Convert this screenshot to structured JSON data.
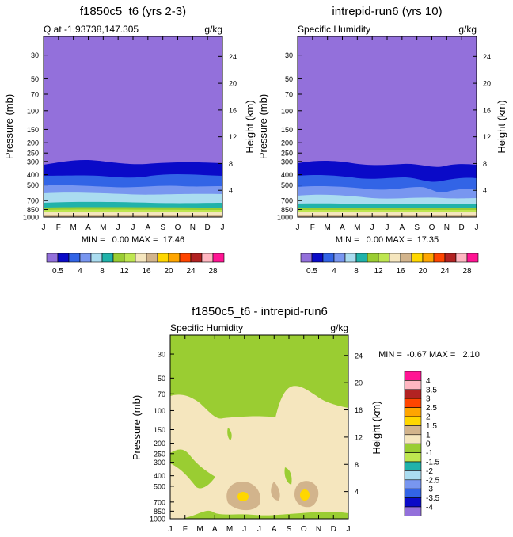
{
  "chart_data": [
    {
      "type": "heatmap",
      "title": "f1850c5_t6 (yrs 2-3)",
      "subtitle_left": "Q at -1.93738,147.305",
      "units": "g/kg",
      "ylabel": "Pressure (mb)",
      "y2label": "Height (km)",
      "x_ticks": [
        "J",
        "F",
        "M",
        "A",
        "M",
        "J",
        "J",
        "A",
        "S",
        "O",
        "N",
        "D",
        "J"
      ],
      "y_ticks": [
        "30",
        "50",
        "70",
        "100",
        "150",
        "200",
        "250",
        "300",
        "400",
        "500",
        "700",
        "850",
        "1000"
      ],
      "y2_ticks": [
        "24",
        "20",
        "16",
        "12",
        "8",
        "4"
      ],
      "stats": "MIN =   0.00 MAX =  17.46",
      "colorbar_labels": [
        "0.5",
        "4",
        "8",
        "12",
        "16",
        "20",
        "24",
        "28"
      ]
    },
    {
      "type": "heatmap",
      "title": "intrepid-run6 (yrs 10)",
      "subtitle_left": "Specific Humidity",
      "units": "g/kg",
      "ylabel": "Pressure (mb)",
      "y2label": "Height (km)",
      "x_ticks": [
        "J",
        "F",
        "M",
        "A",
        "M",
        "J",
        "J",
        "A",
        "S",
        "O",
        "N",
        "D",
        "J"
      ],
      "y_ticks": [
        "30",
        "50",
        "70",
        "100",
        "150",
        "200",
        "250",
        "300",
        "400",
        "500",
        "700",
        "850",
        "1000"
      ],
      "y2_ticks": [
        "24",
        "20",
        "16",
        "12",
        "8",
        "4"
      ],
      "stats": "MIN =   0.00 MAX =  17.35",
      "colorbar_labels": [
        "0.5",
        "4",
        "8",
        "12",
        "16",
        "20",
        "24",
        "28"
      ]
    },
    {
      "type": "heatmap",
      "title": "f1850c5_t6 - intrepid-run6",
      "subtitle_left": "Specific Humidity",
      "units": "g/kg",
      "ylabel": "Pressure (mb)",
      "y2label": "Height (km)",
      "x_ticks": [
        "J",
        "F",
        "M",
        "A",
        "M",
        "J",
        "J",
        "A",
        "S",
        "O",
        "N",
        "D",
        "J"
      ],
      "y_ticks": [
        "30",
        "50",
        "70",
        "100",
        "150",
        "200",
        "250",
        "300",
        "400",
        "500",
        "700",
        "850",
        "1000"
      ],
      "y2_ticks": [
        "24",
        "20",
        "16",
        "12",
        "8",
        "4"
      ],
      "stats": "MIN =  -0.67 MAX =   2.10",
      "legend_levels": [
        "4",
        "3.5",
        "3",
        "2.5",
        "2",
        "1.5",
        "1",
        "0",
        "-1",
        "-1.5",
        "-2",
        "-2.5",
        "-3",
        "-3.5",
        "-4"
      ]
    }
  ],
  "palettes": {
    "abs": [
      "#9370db",
      "#0a0ac8",
      "#3264e6",
      "#7896f0",
      "#aadcf0",
      "#20b2aa",
      "#9acd32",
      "#bee650",
      "#f5e6be",
      "#d2b48c",
      "#ffd700",
      "#ffa500",
      "#ff4500",
      "#b22222",
      "#ffb6c1",
      "#ff1493"
    ],
    "diff": [
      "#ff1493",
      "#ffb6c1",
      "#b22222",
      "#ff4500",
      "#ffa500",
      "#ffd700",
      "#d2b48c",
      "#f5e6be",
      "#9acd32",
      "#bee650",
      "#20b2aa",
      "#aadcf0",
      "#7896f0",
      "#3264e6",
      "#0a0ac8",
      "#9370db"
    ]
  }
}
